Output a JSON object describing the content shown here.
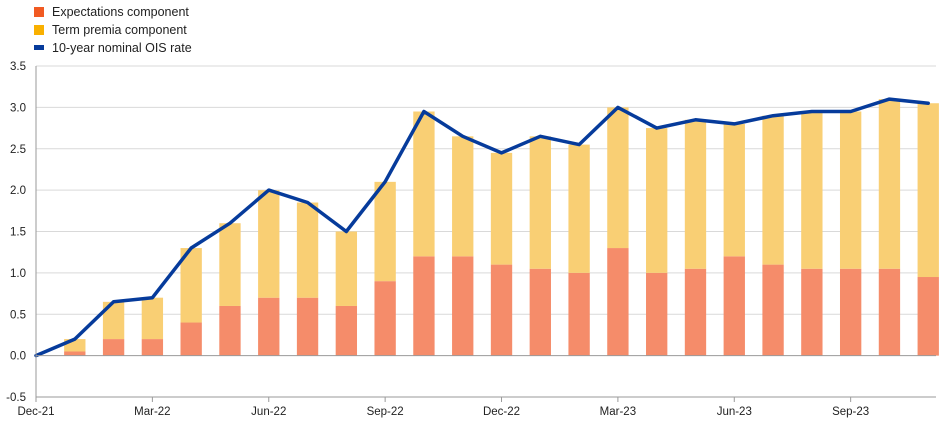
{
  "chart_data": {
    "type": "bar",
    "title": "",
    "xlabel": "",
    "ylabel": "",
    "ylim": [
      -0.5,
      3.5
    ],
    "yticks": [
      -0.5,
      0.0,
      0.5,
      1.0,
      1.5,
      2.0,
      2.5,
      3.0,
      3.5
    ],
    "ytick_labels": [
      "-0.5",
      "0.0",
      "0.5",
      "1.0",
      "1.5",
      "2.0",
      "2.5",
      "3.0",
      "3.5"
    ],
    "xlim": [
      "2021-12",
      "2023-11"
    ],
    "xticks": [
      {
        "x": "2021-12",
        "label": "Dec-21"
      },
      {
        "x": "2022-03",
        "label": "Mar-22"
      },
      {
        "x": "2022-06",
        "label": "Jun-22"
      },
      {
        "x": "2022-09",
        "label": "Sep-22"
      },
      {
        "x": "2022-12",
        "label": "Dec-22"
      },
      {
        "x": "2023-03",
        "label": "Mar-23"
      },
      {
        "x": "2023-06",
        "label": "Jun-23"
      },
      {
        "x": "2023-09",
        "label": "Sep-23"
      }
    ],
    "grid": true,
    "legend_position": "top-left",
    "series": [
      {
        "name": "Expectations component",
        "kind": "stacked-bar",
        "color": "#f58c6a",
        "x": [
          "2021-12",
          "2022-01",
          "2022-02",
          "2022-03",
          "2022-04",
          "2022-05",
          "2022-06",
          "2022-07",
          "2022-08",
          "2022-09",
          "2022-10",
          "2022-11",
          "2022-12",
          "2023-01",
          "2023-02",
          "2023-03",
          "2023-04",
          "2023-05",
          "2023-06",
          "2023-07",
          "2023-08",
          "2023-09",
          "2023-10",
          "2023-11"
        ],
        "values": [
          0.0,
          0.05,
          0.2,
          0.2,
          0.4,
          0.6,
          0.7,
          0.7,
          0.6,
          0.9,
          1.2,
          1.2,
          1.1,
          1.05,
          1.0,
          1.3,
          1.0,
          1.05,
          1.2,
          1.1,
          1.05,
          1.05,
          1.05,
          0.95
        ]
      },
      {
        "name": "Term premia component",
        "kind": "stacked-bar",
        "color": "#f9cf74",
        "x": [
          "2021-12",
          "2022-01",
          "2022-02",
          "2022-03",
          "2022-04",
          "2022-05",
          "2022-06",
          "2022-07",
          "2022-08",
          "2022-09",
          "2022-10",
          "2022-11",
          "2022-12",
          "2023-01",
          "2023-02",
          "2023-03",
          "2023-04",
          "2023-05",
          "2023-06",
          "2023-07",
          "2023-08",
          "2023-09",
          "2023-10",
          "2023-11"
        ],
        "values": [
          0.0,
          0.15,
          0.45,
          0.5,
          0.9,
          1.0,
          1.3,
          1.15,
          0.9,
          1.2,
          1.75,
          1.45,
          1.35,
          1.6,
          1.55,
          1.7,
          1.75,
          1.8,
          1.6,
          1.8,
          1.9,
          1.9,
          2.05,
          2.1
        ]
      },
      {
        "name": "10-year nominal OIS rate",
        "kind": "line",
        "color": "#063b9b",
        "x": [
          "2021-12",
          "2022-01",
          "2022-02",
          "2022-03",
          "2022-04",
          "2022-05",
          "2022-06",
          "2022-07",
          "2022-08",
          "2022-09",
          "2022-10",
          "2022-11",
          "2022-12",
          "2023-01",
          "2023-02",
          "2023-03",
          "2023-04",
          "2023-05",
          "2023-06",
          "2023-07",
          "2023-08",
          "2023-09",
          "2023-10",
          "2023-11"
        ],
        "values": [
          0.0,
          0.2,
          0.65,
          0.7,
          1.3,
          1.6,
          2.0,
          1.85,
          1.5,
          2.1,
          2.95,
          2.65,
          2.45,
          2.65,
          2.55,
          3.0,
          2.75,
          2.85,
          2.8,
          2.9,
          2.95,
          2.95,
          3.1,
          3.05
        ]
      }
    ]
  }
}
